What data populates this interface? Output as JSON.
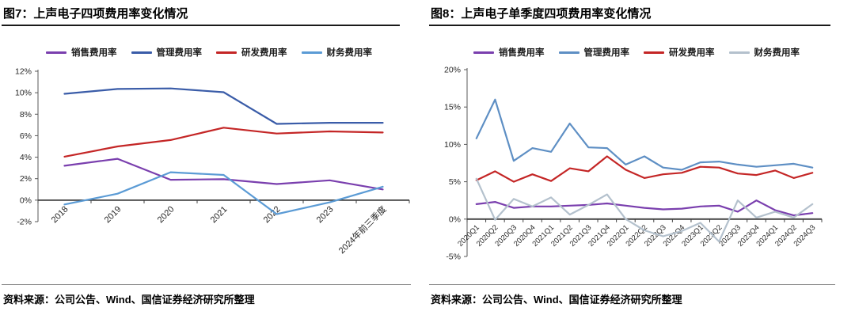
{
  "page": {
    "background": "#ffffff"
  },
  "chart_data": [
    {
      "type": "line",
      "figure_id": "图7",
      "title": "图7：上声电子四项费用率变化情况",
      "source": "资料来源：公司公告、Wind、国信证券经济研究所整理",
      "legend_position": "top",
      "grid": false,
      "ylim": [
        -2,
        12
      ],
      "ytick_step": 2,
      "ytick_suffix": "%",
      "categories": [
        "2018",
        "2019",
        "2020",
        "2021",
        "2022",
        "2023",
        "2024年前三季度"
      ],
      "series": [
        {
          "name": "销售费用率",
          "color": "#7A3FAE",
          "values": [
            3.2,
            3.85,
            1.9,
            1.95,
            1.5,
            1.85,
            1.0
          ]
        },
        {
          "name": "管理费用率",
          "color": "#3A5CA8",
          "values": [
            9.9,
            10.35,
            10.4,
            10.05,
            7.1,
            7.2,
            7.2
          ]
        },
        {
          "name": "研发费用率",
          "color": "#C42626",
          "values": [
            4.05,
            5.0,
            5.6,
            6.75,
            6.2,
            6.4,
            6.3
          ]
        },
        {
          "name": "财务费用率",
          "color": "#5B9BD5",
          "values": [
            -0.4,
            0.6,
            2.6,
            2.35,
            -1.3,
            -0.2,
            1.25
          ]
        }
      ]
    },
    {
      "type": "line",
      "figure_id": "图8",
      "title": "图8：上声电子单季度四项费用率变化情况",
      "source": "资料来源：公司公告、Wind、国信证券经济研究所整理",
      "legend_position": "top",
      "grid": false,
      "ylim": [
        -5,
        20
      ],
      "ytick_step": 5,
      "ytick_suffix": "%",
      "categories": [
        "2020Q1",
        "2020Q2",
        "2020Q3",
        "2020Q4",
        "2021Q1",
        "2021Q2",
        "2021Q3",
        "2021Q4",
        "2022Q1",
        "2022Q2",
        "2022Q3",
        "2022Q4",
        "2023Q1",
        "2023Q2",
        "2023Q3",
        "2023Q4",
        "2024Q1",
        "2024Q2",
        "2024Q3"
      ],
      "series": [
        {
          "name": "销售费用率",
          "color": "#7A3FAE",
          "values": [
            2.0,
            2.3,
            1.5,
            1.7,
            1.7,
            1.8,
            1.9,
            2.1,
            1.8,
            1.5,
            1.3,
            1.4,
            1.7,
            1.8,
            1.0,
            2.5,
            1.2,
            0.5,
            0.8
          ]
        },
        {
          "name": "管理费用率",
          "color": "#5E8FC4",
          "values": [
            10.8,
            16.0,
            7.8,
            9.5,
            9.0,
            12.8,
            9.6,
            9.5,
            7.3,
            8.4,
            6.9,
            6.6,
            7.6,
            7.7,
            7.3,
            7.0,
            7.2,
            7.4,
            6.9
          ]
        },
        {
          "name": "研发费用率",
          "color": "#C42626",
          "values": [
            5.2,
            6.4,
            5.0,
            6.0,
            5.1,
            6.8,
            6.4,
            8.4,
            6.6,
            5.5,
            6.0,
            6.2,
            7.0,
            6.9,
            6.1,
            5.9,
            6.5,
            5.5,
            6.2
          ]
        },
        {
          "name": "财务费用率",
          "color": "#B4C1CD",
          "values": [
            5.4,
            -0.1,
            2.7,
            1.7,
            2.9,
            0.6,
            1.9,
            3.3,
            0.0,
            -1.5,
            -2.3,
            -1.6,
            -0.5,
            -3.0,
            2.5,
            0.2,
            1.0,
            0.2,
            2.0
          ]
        }
      ]
    }
  ]
}
